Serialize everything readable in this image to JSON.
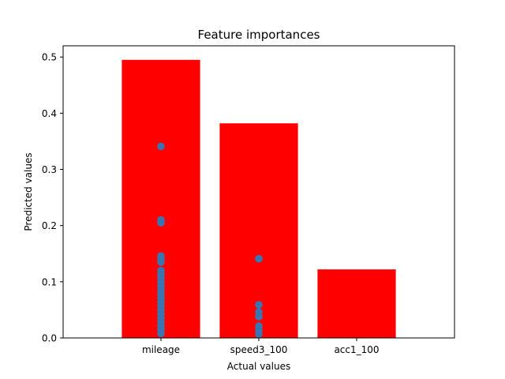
{
  "chart_data": {
    "type": "bar",
    "title": "Feature importances",
    "xlabel": "Actual values",
    "ylabel": "Predicted values",
    "categories": [
      "mileage",
      "speed3_100",
      "acc1_100"
    ],
    "values": [
      0.495,
      0.382,
      0.122
    ],
    "bar_color": "#ff0000",
    "ylim": [
      0,
      0.52
    ],
    "yticks": [
      0.0,
      0.1,
      0.2,
      0.3,
      0.4,
      0.5
    ],
    "ytick_labels": [
      "0.0",
      "0.1",
      "0.2",
      "0.3",
      "0.4",
      "0.5"
    ],
    "grid": false,
    "scatter": {
      "color": "#3a75b0",
      "points": [
        {
          "category": "mileage",
          "y": 0.341
        },
        {
          "category": "mileage",
          "y": 0.21
        },
        {
          "category": "mileage",
          "y": 0.205
        },
        {
          "category": "mileage",
          "y": 0.146
        },
        {
          "category": "mileage",
          "y": 0.14
        },
        {
          "category": "mileage",
          "y": 0.135
        },
        {
          "category": "mileage",
          "y": 0.12
        },
        {
          "category": "mileage",
          "y": 0.113
        },
        {
          "category": "mileage",
          "y": 0.106
        },
        {
          "category": "mileage",
          "y": 0.099
        },
        {
          "category": "mileage",
          "y": 0.092
        },
        {
          "category": "mileage",
          "y": 0.085
        },
        {
          "category": "mileage",
          "y": 0.078
        },
        {
          "category": "mileage",
          "y": 0.071
        },
        {
          "category": "mileage",
          "y": 0.064
        },
        {
          "category": "mileage",
          "y": 0.057
        },
        {
          "category": "mileage",
          "y": 0.05
        },
        {
          "category": "mileage",
          "y": 0.043
        },
        {
          "category": "mileage",
          "y": 0.036
        },
        {
          "category": "mileage",
          "y": 0.029
        },
        {
          "category": "mileage",
          "y": 0.022
        },
        {
          "category": "mileage",
          "y": 0.015
        },
        {
          "category": "mileage",
          "y": 0.008
        },
        {
          "category": "speed3_100",
          "y": 0.141
        },
        {
          "category": "speed3_100",
          "y": 0.059
        },
        {
          "category": "speed3_100",
          "y": 0.046
        },
        {
          "category": "speed3_100",
          "y": 0.038
        },
        {
          "category": "speed3_100",
          "y": 0.021
        },
        {
          "category": "speed3_100",
          "y": 0.014
        },
        {
          "category": "speed3_100",
          "y": 0.007
        }
      ]
    }
  }
}
